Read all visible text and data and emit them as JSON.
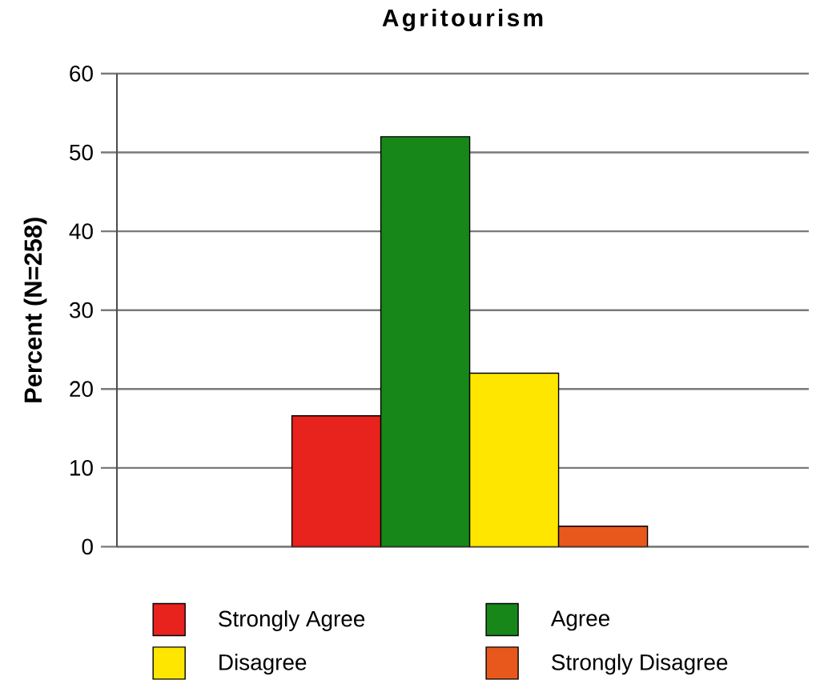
{
  "chart_data": {
    "type": "bar",
    "title": "Agritourism",
    "ylabel": "Percent (N=258)",
    "categories": [
      null
    ],
    "series": [
      {
        "name": "Strongly Agree",
        "color": "#e8221c",
        "values": [
          16.6
        ]
      },
      {
        "name": "Agree",
        "color": "#17871a",
        "values": [
          52.0
        ]
      },
      {
        "name": "Disagree",
        "color": "#ffe600",
        "values": [
          22.0
        ]
      },
      {
        "name": "Strongly Disagree",
        "color": "#e8581c",
        "values": [
          2.6
        ]
      }
    ],
    "ylim": [
      0,
      60
    ],
    "yticks": [
      0,
      10,
      20,
      30,
      40,
      50,
      60
    ],
    "grid": "y",
    "legend": "bottom"
  }
}
